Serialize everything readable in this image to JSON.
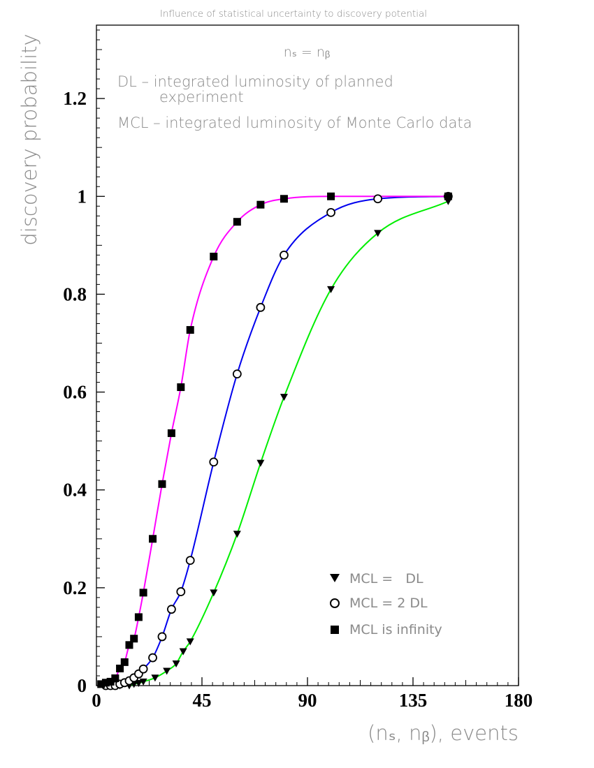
{
  "chart_data": {
    "type": "line",
    "title": "Influence of statistical uncertainty to discovery potential",
    "xlabel": "(nₛ, nᵦ), events",
    "ylabel": "discovery probability",
    "xlim": [
      0,
      180
    ],
    "ylim": [
      0,
      1.35
    ],
    "x_ticks": [
      "0",
      "45",
      "90",
      "135",
      "180"
    ],
    "y_ticks": [
      "0",
      "0.2",
      "0.4",
      "0.6",
      "0.8",
      "1",
      "1.2"
    ],
    "annotations": {
      "eq": "nₛ = nᵦ",
      "dl_line1": "DL  – integrated luminosity of planned",
      "dl_line2": "experiment",
      "mcl_line": "MCL – integrated luminosity of Monte Carlo data"
    },
    "legend_position": "bottom-right",
    "series": [
      {
        "name": "MCL =   DL",
        "marker": "triangle-down",
        "color": "#00ee00",
        "x": [
          10,
          14,
          16,
          18,
          20,
          25,
          30,
          34,
          37,
          40,
          50,
          60,
          70,
          80,
          100,
          120,
          150
        ],
        "y": [
          0.0,
          0.0,
          0.003,
          0.005,
          0.008,
          0.016,
          0.03,
          0.045,
          0.07,
          0.09,
          0.19,
          0.31,
          0.455,
          0.59,
          0.81,
          0.925,
          0.99
        ]
      },
      {
        "name": "MCL = 2 DL",
        "marker": "circle-open",
        "color": "#0000ee",
        "x": [
          4,
          6,
          8,
          10,
          12,
          14,
          16,
          18,
          20,
          24,
          28,
          32,
          36,
          40,
          50,
          60,
          70,
          80,
          100,
          120,
          150
        ],
        "y": [
          0.0,
          0.0,
          0.0,
          0.003,
          0.006,
          0.01,
          0.016,
          0.024,
          0.034,
          0.057,
          0.1,
          0.156,
          0.192,
          0.256,
          0.457,
          0.637,
          0.773,
          0.88,
          0.967,
          0.995,
          1.0
        ]
      },
      {
        "name": "MCL is infinity",
        "marker": "square",
        "color": "#ff00ff",
        "x": [
          2,
          4,
          6,
          8,
          10,
          12,
          14,
          16,
          18,
          20,
          24,
          28,
          32,
          36,
          40,
          50,
          60,
          70,
          80,
          100,
          150
        ],
        "y": [
          0.003,
          0.006,
          0.008,
          0.015,
          0.035,
          0.048,
          0.083,
          0.096,
          0.14,
          0.19,
          0.3,
          0.412,
          0.516,
          0.61,
          0.727,
          0.877,
          0.948,
          0.983,
          0.995,
          1.0,
          1.0
        ]
      }
    ]
  }
}
